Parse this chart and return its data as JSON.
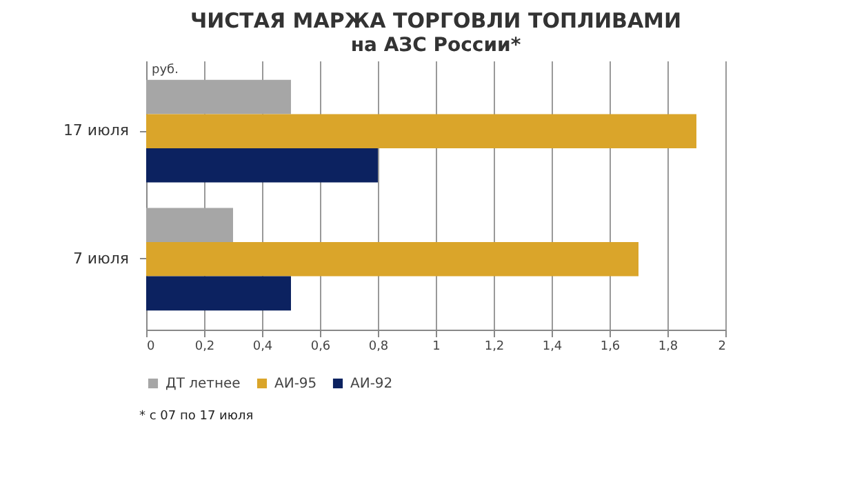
{
  "chart_data": {
    "type": "bar",
    "orientation": "horizontal",
    "title": "ЧИСТАЯ МАРЖА ТОРГОВЛИ ТОПЛИВАМИ",
    "subtitle": "на АЗС России*",
    "xlabel": "руб.",
    "categories": [
      "17 июля",
      "7 июля"
    ],
    "series": [
      {
        "name": "ДТ летнее",
        "color": "#a6a6a6",
        "values": [
          0.5,
          0.3
        ]
      },
      {
        "name": "АИ-95",
        "color": "#daa52a",
        "values": [
          1.9,
          1.7
        ]
      },
      {
        "name": "АИ-92",
        "color": "#0c2260",
        "values": [
          0.8,
          0.5
        ]
      }
    ],
    "xlim": [
      0,
      2
    ],
    "xticks": [
      0,
      {
        "value": 0.2,
        "label": "0,2"
      },
      {
        "value": 0.4,
        "label": "0,4"
      },
      {
        "value": 0.6,
        "label": "0,6"
      },
      {
        "value": 0.8,
        "label": "0,8"
      },
      1,
      {
        "value": 1.2,
        "label": "1,2"
      },
      {
        "value": 1.4,
        "label": "1,4"
      },
      {
        "value": 1.6,
        "label": "1,6"
      },
      {
        "value": 1.8,
        "label": "1,8"
      },
      2
    ],
    "grid": "x",
    "legend": "bottom",
    "annotations": [
      "* с 07 по 17 июля"
    ]
  }
}
